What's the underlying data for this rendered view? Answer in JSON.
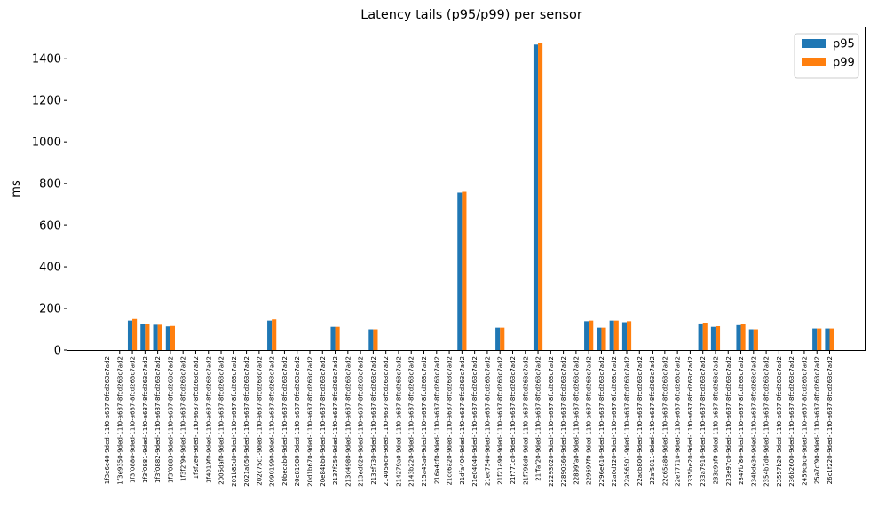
{
  "chart_data": {
    "type": "bar",
    "title": "Latency tails (p95/p99) per sensor",
    "xlabel": "",
    "ylabel": "ms",
    "ylim": [
      0,
      1550
    ],
    "yticks": [
      0,
      200,
      400,
      600,
      800,
      1000,
      1200,
      1400
    ],
    "grid": false,
    "legend_position": "top-right",
    "colors": {
      "p95": "#1f77b4",
      "p99": "#ff7f0e"
    },
    "categories": [
      "1f3e6c40-9ded-11f0-a687-8fcd263c7ad2",
      "1f3e9350-9ded-11f0-a687-8fcd263c7ad2",
      "1f3f0880-9ded-11f0-a687-8fcd263c7ad2",
      "1f3f0881-9ded-11f0-a687-8fcd263c7ad2",
      "1f3f0882-9ded-11f0-a687-8fcd263c7ad2",
      "1f3f0883-9ded-11f0-a687-8fcd263c7ad2",
      "1f3f2f90-9ded-11f0-a687-8fcd263c7ad2",
      "1f3f2e0-9ded-11f0-a687-8fcd263c7ad2",
      "1f4019f0-9ded-11f0-a687-8fcd263c7ad2",
      "2005daf0-9ded-11f0-a687-8fcd263c7ad2",
      "201b85d0-9ded-11f0-a687-8fcd263c7ad2",
      "2021a050-9ded-11f0-a687-8fcd263c7ad2",
      "202c75c1-9ded-11f0-a687-8fcd263c7ad2",
      "20901990-9ded-11f0-a687-8fcd263c7ad2",
      "20becab0-9ded-11f0-a687-8fcd263c7ad2",
      "20c81980-9ded-11f0-a687-8fcd263c7ad2",
      "20d1b670-9ded-11f0-a687-8fcd263c7ad2",
      "20e84bb0-9ded-11f0-a687-8fcd263c7ad2",
      "2137f250-9ded-11f0-a687-8fcd263c7ad2",
      "213d4980-9ded-11f0-a687-8fcd263c7ad2",
      "213ed020-9ded-11f0-a687-8fcd263c7ad2",
      "213ef730-9ded-11f0-a687-8fcd263c7ad2",
      "214056c0-9ded-11f0-a687-8fcd263c7ad2",
      "214279a0-9ded-11f0-a687-8fcd263c7ad2",
      "2143b220-9ded-11f0-a687-8fcd263c7ad2",
      "215a43a0-9ded-11f0-a687-8fcd263c7ad2",
      "216a4cf0-9ded-11f0-a687-8fcd263c7ad2",
      "21cc6a20-9ded-11f0-a687-8fcd263c7ad2",
      "21dfa400-9ded-11f0-a687-8fcd263c7ad2",
      "21e04040-9ded-11f0-a687-8fcd263c7ad2",
      "21ec7540-9ded-11f0-a687-8fcd263c7ad2",
      "21f21a90-9ded-11f0-a687-8fcd263c7ad2",
      "21f771c0-9ded-11f0-a687-8fcd263c7ad2",
      "21f798d0-9ded-11f0-a687-8fcd263c7ad2",
      "21ffaf20-9ded-11f0-a687-8fcd263c7ad2",
      "22293020-9ded-11f0-a687-8fcd263c7ad2",
      "22890360-9ded-11f0-a687-8fcd263c7ad2",
      "22899fa0-9ded-11f0-a687-8fcd263c7ad2",
      "229697f0-9ded-11f0-a687-8fcd263c7ad2",
      "2296e610-9ded-11f0-a687-8fcd263c7ad2",
      "22a0d120-9ded-11f0-a687-8fcd263c7ad2",
      "22a56501-9ded-11f0-a687-8fcd263c7ad2",
      "22acb800-9ded-11f0-a687-8fcd263c7ad2",
      "22af5011-9ded-11f0-a687-8fcd263c7ad2",
      "22c65a80-9ded-11f0-a687-8fcd263c7ad2",
      "22e77710-9ded-11f0-a687-8fcd263c7ad2",
      "2335be20-9ded-11f0-a687-8fcd263c7ad2",
      "233a7910-9ded-11f0-a687-8fcd263c7ad2",
      "233c9bf0-9ded-11f0-a687-8fcd263c7ad2",
      "233e97c0-9ded-11f0-a687-8fcd263c7ad2",
      "2347bf80-9ded-11f0-a687-8fcd263c7ad2",
      "234bde30-9ded-11f0-a687-8fcd263c7ad2",
      "2354b7d0-9ded-11f0-a687-8fcd263c7ad2",
      "23557b20-9ded-11f0-a687-8fcd263c7ad2",
      "236b2600-9ded-11f0-a687-8fcd263c7ad2",
      "2459cbc0-9ded-11f0-a687-8fcd263c7ad2",
      "25a7cf90-9ded-11f0-a687-8fcd263c7ad2",
      "26c1f220-9ded-11f0-a687-8fcd263c7ad2"
    ],
    "series": [
      {
        "name": "p95",
        "values": [
          0,
          0,
          142,
          126,
          122,
          114,
          0,
          0,
          0,
          0,
          0,
          0,
          0,
          142,
          0,
          0,
          0,
          0,
          112,
          0,
          0,
          100,
          0,
          0,
          0,
          0,
          0,
          0,
          756,
          0,
          0,
          108,
          0,
          0,
          1468,
          0,
          0,
          0,
          139,
          108,
          142,
          134,
          0,
          0,
          0,
          0,
          0,
          128,
          112,
          0,
          120,
          100,
          0,
          0,
          0,
          0,
          104,
          104
        ]
      },
      {
        "name": "p99",
        "values": [
          0,
          0,
          150,
          126,
          122,
          116,
          0,
          0,
          0,
          0,
          0,
          0,
          0,
          148,
          0,
          0,
          0,
          0,
          112,
          0,
          0,
          100,
          0,
          0,
          0,
          0,
          0,
          0,
          760,
          0,
          0,
          108,
          0,
          0,
          1475,
          0,
          0,
          0,
          142,
          108,
          142,
          139,
          0,
          0,
          0,
          0,
          0,
          132,
          115,
          0,
          126,
          100,
          0,
          0,
          0,
          0,
          104,
          104
        ]
      }
    ]
  }
}
